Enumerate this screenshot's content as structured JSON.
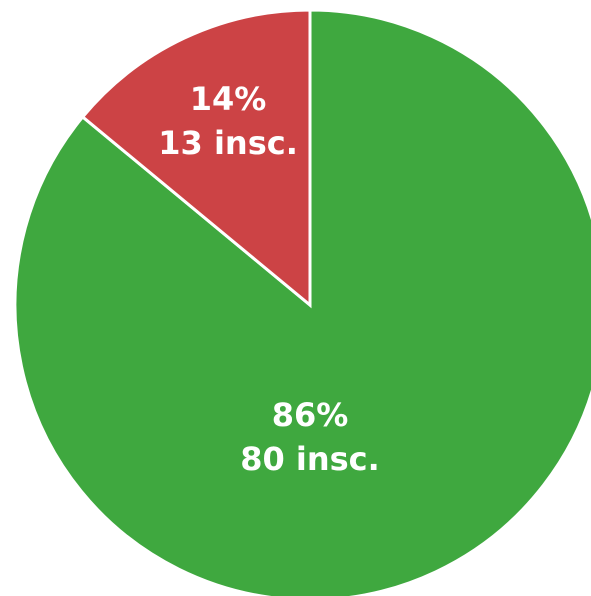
{
  "chart_data": {
    "type": "pie",
    "values": [
      86,
      14
    ],
    "value_labels": [
      "86%",
      "14%"
    ],
    "counts": [
      {
        "value": 80,
        "label": "80 insc."
      },
      {
        "value": 13,
        "label": "13 insc."
      }
    ],
    "colors": [
      "#3fa83f",
      "#cc4345"
    ]
  }
}
